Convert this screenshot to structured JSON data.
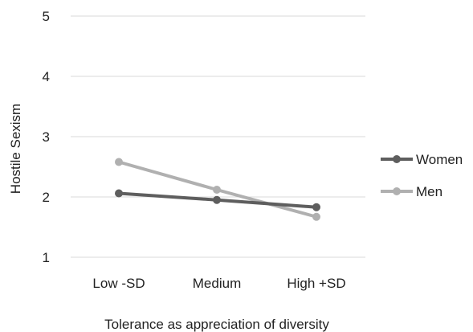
{
  "chart_data": {
    "type": "line",
    "title": "",
    "xlabel": "Tolerance as appreciation of diversity",
    "ylabel": "Hostile Sexism",
    "categories": [
      "Low -SD",
      "Medium",
      "High +SD"
    ],
    "ylim": [
      1,
      5
    ],
    "yticks": [
      "1",
      "2",
      "3",
      "4",
      "5"
    ],
    "grid": true,
    "legend_position": "right",
    "series": [
      {
        "name": "Women",
        "values": [
          2.06,
          1.95,
          1.83
        ],
        "color": "#5e5e5e"
      },
      {
        "name": "Men",
        "values": [
          2.58,
          2.12,
          1.67
        ],
        "color": "#b0b0b0"
      }
    ]
  }
}
